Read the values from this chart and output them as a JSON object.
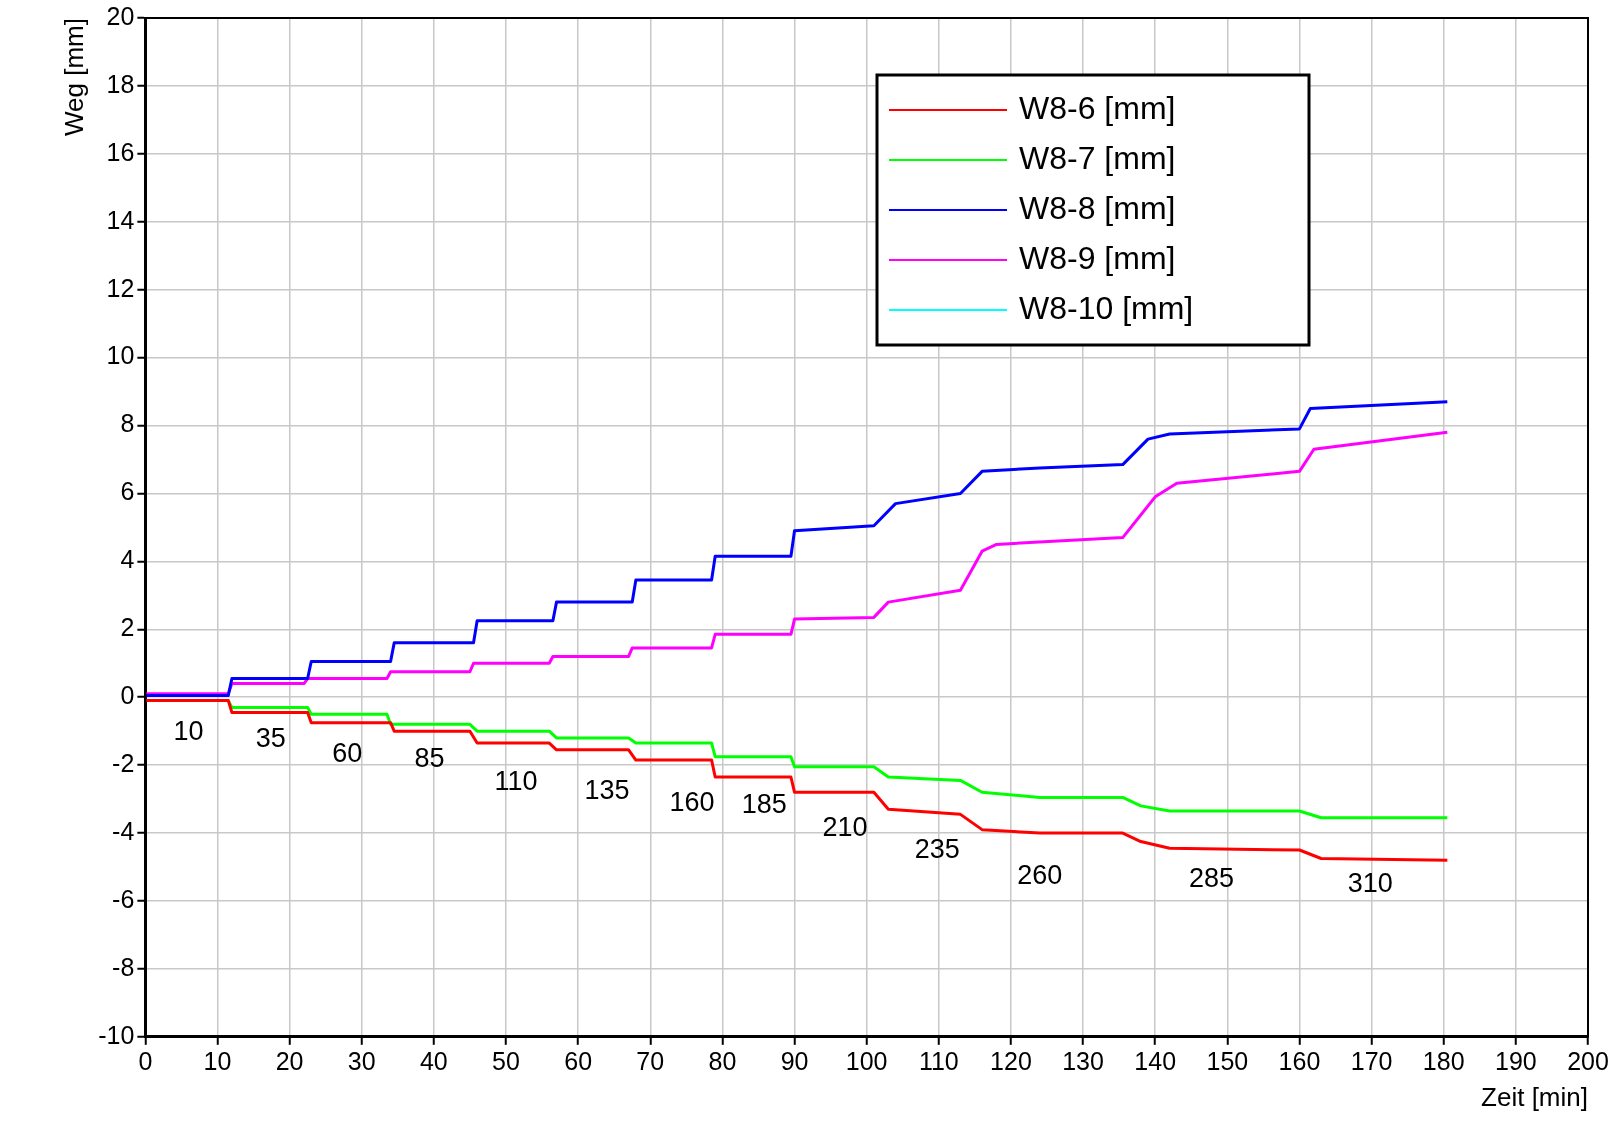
{
  "chart_data": {
    "type": "line",
    "xlabel": "Zeit [min]",
    "ylabel": "Weg [mm]",
    "xlim": [
      0,
      200
    ],
    "ylim": [
      -10,
      20
    ],
    "xticks": [
      0,
      10,
      20,
      30,
      40,
      50,
      60,
      70,
      80,
      90,
      100,
      110,
      120,
      130,
      140,
      150,
      160,
      170,
      180,
      190,
      200
    ],
    "yticks": [
      -10,
      -8,
      -6,
      -4,
      -2,
      0,
      2,
      4,
      6,
      8,
      10,
      12,
      14,
      16,
      18,
      20
    ],
    "grid": true,
    "legend": "top right",
    "marker": "none",
    "line_style": "solid",
    "series": [
      {
        "name": "W8-6 [mm]",
        "color": "#ff0000",
        "x": [
          0,
          11.5,
          12,
          22.5,
          23,
          34,
          34.5,
          45,
          46,
          56,
          57,
          67,
          68,
          78.5,
          79,
          89.5,
          90,
          101,
          103,
          113,
          116,
          124,
          135.5,
          138,
          142,
          160,
          163,
          180.5
        ],
        "values": [
          -0.1,
          -0.1,
          -0.45,
          -0.45,
          -0.75,
          -0.75,
          -1,
          -1,
          -1.35,
          -1.35,
          -1.55,
          -1.55,
          -1.85,
          -1.85,
          -2.35,
          -2.35,
          -2.8,
          -2.8,
          -3.3,
          -3.45,
          -3.9,
          -4,
          -4,
          -4.25,
          -4.45,
          -4.5,
          -4.75,
          -4.8
        ]
      },
      {
        "name": "W8-7 [mm]",
        "color": "#00ff00",
        "x": [
          0,
          11.5,
          12,
          22.5,
          23,
          33.5,
          34,
          45,
          46,
          56,
          57,
          67,
          68,
          78.5,
          79,
          89.5,
          90,
          101,
          103,
          113,
          116,
          124,
          135.5,
          138,
          142,
          160,
          163,
          180.5
        ],
        "values": [
          -0.1,
          -0.1,
          -0.3,
          -0.3,
          -0.5,
          -0.5,
          -0.8,
          -0.8,
          -1,
          -1,
          -1.2,
          -1.2,
          -1.35,
          -1.35,
          -1.75,
          -1.75,
          -2.05,
          -2.05,
          -2.35,
          -2.45,
          -2.8,
          -2.95,
          -2.95,
          -3.2,
          -3.35,
          -3.35,
          -3.55,
          -3.55
        ]
      },
      {
        "name": "W8-8 [mm]",
        "color": "#0000ff",
        "x": [
          0,
          11.5,
          12,
          22.5,
          23,
          34,
          34.5,
          45.5,
          46,
          56.5,
          57,
          67.5,
          68,
          78.5,
          79,
          89.5,
          90,
          101,
          104,
          113,
          116,
          124,
          135.5,
          139,
          142,
          160,
          161.5,
          180.5
        ],
        "values": [
          0.05,
          0.05,
          0.55,
          0.55,
          1.05,
          1.05,
          1.6,
          1.6,
          2.25,
          2.25,
          2.8,
          2.8,
          3.45,
          3.45,
          4.15,
          4.15,
          4.9,
          5.05,
          5.7,
          6,
          6.65,
          6.75,
          6.85,
          7.6,
          7.75,
          7.9,
          8.5,
          8.7
        ]
      },
      {
        "name": "W8-9 [mm]",
        "color": "#ff00ff",
        "x": [
          0,
          11.5,
          12,
          22,
          22.5,
          33.5,
          34,
          45,
          45.5,
          56,
          56.5,
          67,
          67.5,
          78.5,
          79,
          89.5,
          90,
          101,
          103,
          113,
          116,
          118,
          135.5,
          140,
          143,
          160,
          162,
          180.5
        ],
        "values": [
          0.1,
          0.1,
          0.4,
          0.4,
          0.55,
          0.55,
          0.75,
          0.75,
          1,
          1,
          1.2,
          1.2,
          1.45,
          1.45,
          1.85,
          1.85,
          2.3,
          2.35,
          2.8,
          3.15,
          4.3,
          4.5,
          4.7,
          5.9,
          6.3,
          6.65,
          7.3,
          7.8
        ]
      },
      {
        "name": "W8-10 [mm]",
        "color": "#00ffff"
      }
    ],
    "annotations": [
      "10",
      "35",
      "60",
      "85",
      "110",
      "135",
      "160",
      "185",
      "210",
      "235",
      "260",
      "285",
      "310"
    ]
  }
}
